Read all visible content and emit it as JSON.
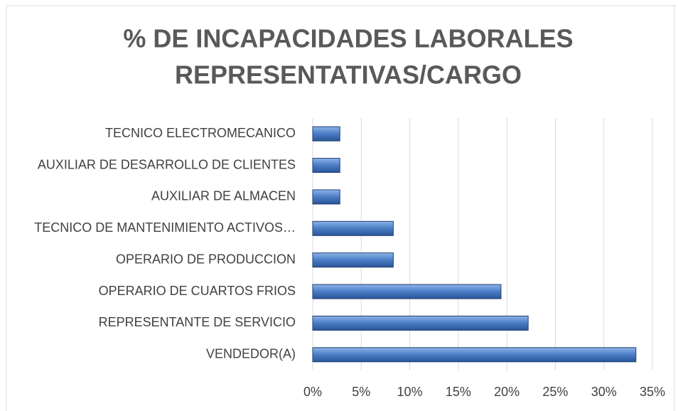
{
  "chart_data": {
    "type": "hbar",
    "title": [
      "% DE INCAPACIDADES LABORALES",
      "REPRESENTATIVAS/CARGO"
    ],
    "categories": [
      "TECNICO ELECTROMECANICO",
      "AUXILIAR DE DESARROLLO DE CLIENTES",
      "AUXILIAR DE ALMACEN",
      "TECNICO DE MANTENIMIENTO ACTIVOS…",
      "OPERARIO DE PRODUCCION",
      "OPERARIO DE CUARTOS FRIOS",
      "REPRESENTANTE DE SERVICIO",
      "VENDEDOR(A)"
    ],
    "values": [
      2.8,
      2.8,
      2.8,
      8.3,
      8.3,
      19.4,
      22.2,
      33.3
    ],
    "color": "#4a7cc4",
    "xlim": [
      0,
      35
    ],
    "xticks": [
      {
        "value": 0,
        "label": "0%"
      },
      {
        "value": 5,
        "label": "5%"
      },
      {
        "value": 10,
        "label": "10%"
      },
      {
        "value": 15,
        "label": "15%"
      },
      {
        "value": 20,
        "label": "20%"
      },
      {
        "value": 25,
        "label": "25%"
      },
      {
        "value": 30,
        "label": "30%"
      },
      {
        "value": 35,
        "label": "35%"
      }
    ],
    "grid": true
  }
}
